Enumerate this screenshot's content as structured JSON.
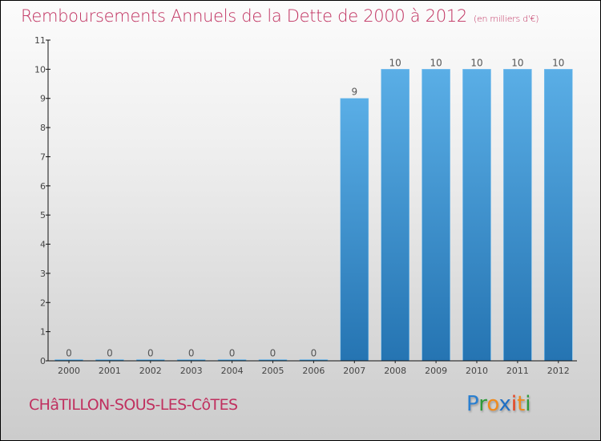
{
  "header": {
    "title": "Remboursements Annuels de la Dette de 2000 à 2012",
    "subtitle": "(en milliers d'€)"
  },
  "footer": {
    "place": "CHâTILLON-SOUS-LES-CôTES",
    "logo": {
      "letters": [
        {
          "char": "P",
          "color": "#2a7fd0"
        },
        {
          "char": "r",
          "color": "#2e9a3a"
        },
        {
          "char": "o",
          "color": "#f08a1c"
        },
        {
          "char": "x",
          "color": "#1f6fc4"
        },
        {
          "char": "i",
          "color": "#e8401c"
        },
        {
          "char": "t",
          "color": "#f08a1c"
        },
        {
          "char": "i",
          "color": "#2e9a3a"
        }
      ]
    }
  },
  "colors": {
    "bar_top": "#5aaee6",
    "bar_bottom": "#2574b2",
    "title": "#c0305f"
  },
  "chart_data": {
    "type": "bar",
    "title": "Remboursements Annuels de la Dette de 2000 à 2012",
    "subtitle": "(en milliers d'€)",
    "xlabel": "",
    "ylabel": "",
    "categories": [
      "2000",
      "2001",
      "2002",
      "2003",
      "2004",
      "2005",
      "2006",
      "2007",
      "2008",
      "2009",
      "2010",
      "2011",
      "2012"
    ],
    "values": [
      0,
      0,
      0,
      0,
      0,
      0,
      0,
      9,
      10,
      10,
      10,
      10,
      10
    ],
    "data_labels": [
      "0",
      "0",
      "0",
      "0",
      "0",
      "0",
      "0",
      "9",
      "10",
      "10",
      "10",
      "10",
      "10"
    ],
    "ylim": [
      0,
      11
    ],
    "yticks": [
      0,
      1,
      2,
      3,
      4,
      5,
      6,
      7,
      8,
      9,
      10,
      11
    ],
    "grid": false,
    "legend": "none"
  }
}
